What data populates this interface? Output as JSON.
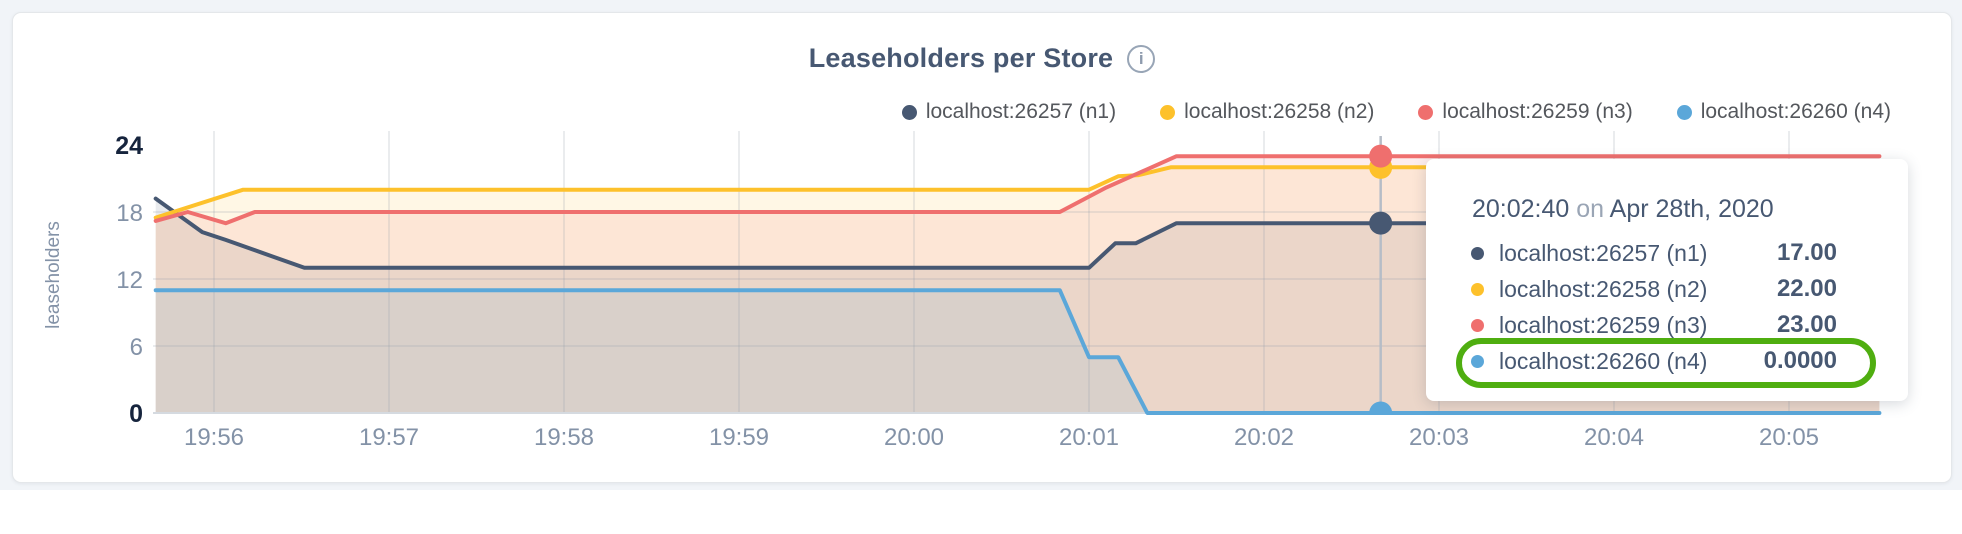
{
  "page": {
    "background": "#f1f4f8",
    "card_background": "#ffffff"
  },
  "chart": {
    "title": "Leaseholders per Store",
    "info_icon_glyph": "i",
    "ylabel": "leaseholders"
  },
  "legend": {
    "items": [
      {
        "label": "localhost:26257 (n1)",
        "color": "#475872"
      },
      {
        "label": "localhost:26258 (n2)",
        "color": "#fdc12b"
      },
      {
        "label": "localhost:26259 (n3)",
        "color": "#ef6f6e"
      },
      {
        "label": "localhost:26260 (n4)",
        "color": "#5ba7d9"
      }
    ]
  },
  "chart_data": {
    "type": "area",
    "title": "Leaseholders per Store",
    "xlabel": "",
    "ylabel": "leaseholders",
    "ylim": [
      0,
      24
    ],
    "yticks": [
      0,
      6,
      12,
      18,
      24
    ],
    "ytick_bold": [
      0,
      24
    ],
    "xticks": [
      "19:56",
      "19:57",
      "19:58",
      "19:59",
      "20:00",
      "20:01",
      "20:02",
      "20:03",
      "20:04",
      "20:05"
    ],
    "time_domain": [
      "19:55:40",
      "20:05:31"
    ],
    "grid": true,
    "legend_position": "top-right",
    "fill_opacity": 0.12,
    "series": [
      {
        "name": "localhost:26257 (n1)",
        "color": "#475872",
        "points": [
          [
            "19:55:40",
            19.2
          ],
          [
            "19:55:56",
            16.2
          ],
          [
            "19:56:04",
            15.5
          ],
          [
            "19:56:31",
            13
          ],
          [
            "20:01:00",
            13
          ],
          [
            "20:01:09",
            15.2
          ],
          [
            "20:01:16",
            15.2
          ],
          [
            "20:01:30",
            17
          ],
          [
            "20:05:31",
            17
          ]
        ]
      },
      {
        "name": "localhost:26258 (n2)",
        "color": "#fdc12b",
        "points": [
          [
            "19:55:40",
            17.5
          ],
          [
            "19:56:10",
            20
          ],
          [
            "20:01:00",
            20
          ],
          [
            "20:01:10",
            21.2
          ],
          [
            "20:01:17",
            21.3
          ],
          [
            "20:01:28",
            22
          ],
          [
            "20:05:31",
            22
          ]
        ]
      },
      {
        "name": "localhost:26259 (n3)",
        "color": "#ef6f6e",
        "points": [
          [
            "19:55:40",
            17.2
          ],
          [
            "19:55:51",
            18
          ],
          [
            "19:56:04",
            17
          ],
          [
            "19:56:14",
            18
          ],
          [
            "20:00:50",
            18
          ],
          [
            "20:01:06",
            20.2
          ],
          [
            "20:01:30",
            23
          ],
          [
            "20:05:31",
            23
          ]
        ]
      },
      {
        "name": "localhost:26260 (n4)",
        "color": "#5ba7d9",
        "points": [
          [
            "19:55:40",
            11
          ],
          [
            "20:00:50",
            11
          ],
          [
            "20:01:00",
            5
          ],
          [
            "20:01:10",
            5
          ],
          [
            "20:01:20",
            0
          ],
          [
            "20:05:31",
            0
          ]
        ]
      }
    ],
    "hover": {
      "time": "20:02:40",
      "values": [
        17,
        22,
        23,
        0
      ]
    }
  },
  "tooltip": {
    "time": "20:02:40",
    "connector": "on",
    "date": "Apr 28th, 2020",
    "rows": [
      {
        "label": "localhost:26257 (n1)",
        "value": "17.00",
        "color": "#475872",
        "highlighted": false
      },
      {
        "label": "localhost:26258 (n2)",
        "value": "22.00",
        "color": "#fdc12b",
        "highlighted": false
      },
      {
        "label": "localhost:26259 (n3)",
        "value": "23.00",
        "color": "#ef6f6e",
        "highlighted": false
      },
      {
        "label": "localhost:26260 (n4)",
        "value": "0.0000",
        "color": "#5ba7d9",
        "highlighted": true
      }
    ],
    "highlight_ring_color": "#4fae10"
  },
  "colors": {
    "title_text": "#475872",
    "axis_tick_muted": "#8392a7",
    "axis_tick_bold": "#16243d",
    "legend_text": "#54575c",
    "gridline": "#98a1ad",
    "hover_line": "#b6bdc7",
    "axis_line": "#d5dae0"
  }
}
